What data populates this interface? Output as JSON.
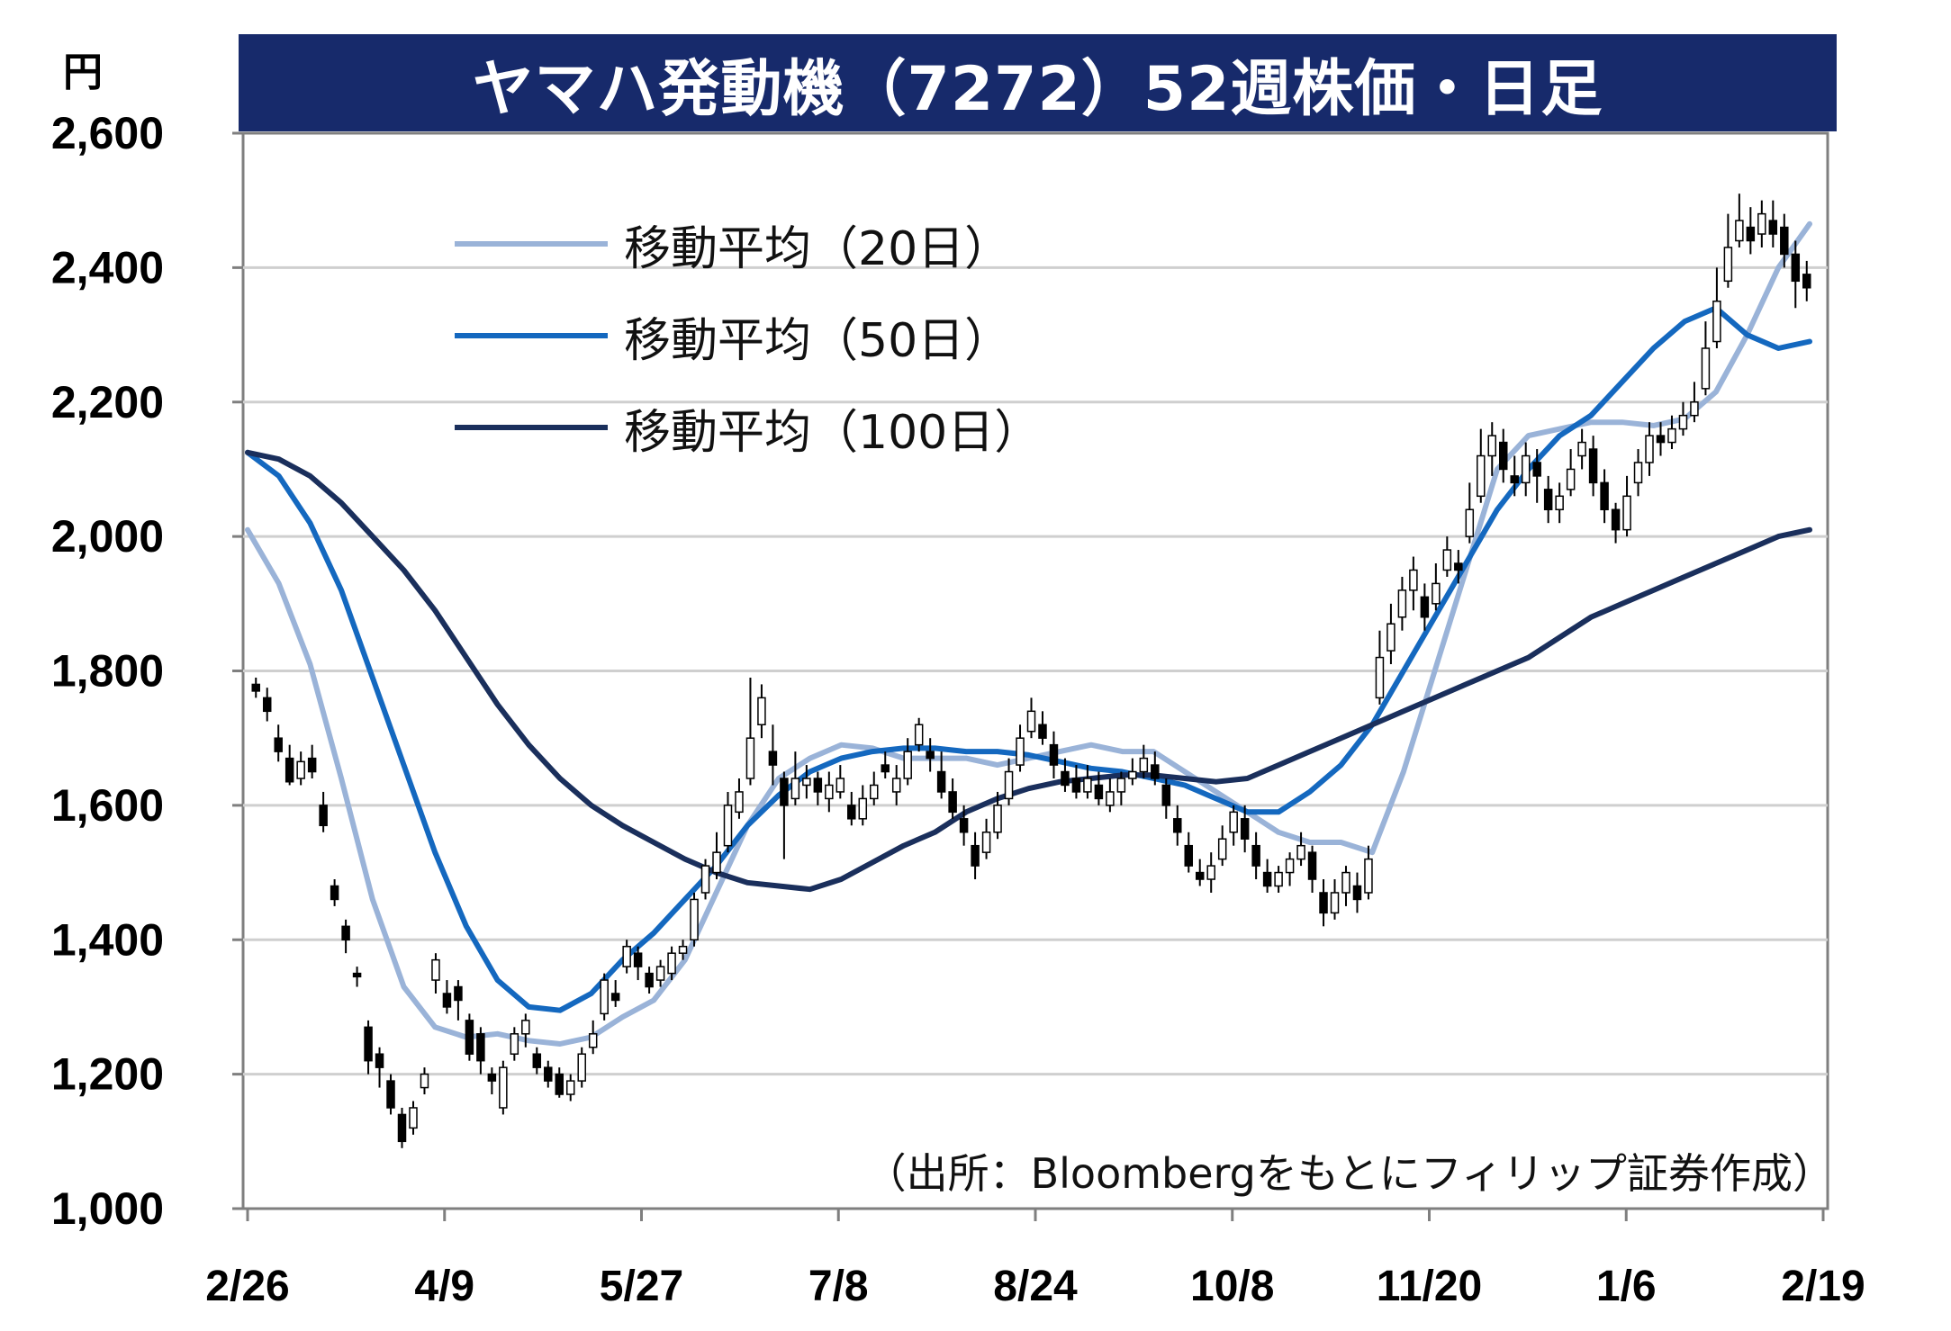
{
  "chart_data": {
    "type": "candlestick",
    "title": "ヤマハ発動機（7272）52週株価・日足",
    "ylabel": "円",
    "ylim": [
      1000,
      2600
    ],
    "y_ticks": [
      "1,000",
      "1,200",
      "1,400",
      "1,600",
      "1,800",
      "2,000",
      "2,200",
      "2,400",
      "2,600"
    ],
    "y_tick_values": [
      1000,
      1200,
      1400,
      1600,
      1800,
      2000,
      2200,
      2400,
      2600
    ],
    "x_ticks": [
      "2/26",
      "4/9",
      "5/27",
      "7/8",
      "8/24",
      "10/8",
      "11/20",
      "1/6",
      "2/19"
    ],
    "grid": true,
    "legend_position": "top-left",
    "source_note": "（出所：Bloombergをもとにフィリップ証券作成）",
    "candles": [
      [
        1780,
        1770,
        1790,
        1760
      ],
      [
        1760,
        1740,
        1775,
        1725
      ],
      [
        1700,
        1680,
        1720,
        1665
      ],
      [
        1670,
        1635,
        1690,
        1630
      ],
      [
        1640,
        1665,
        1680,
        1630
      ],
      [
        1670,
        1650,
        1690,
        1640
      ],
      [
        1600,
        1570,
        1620,
        1560
      ],
      [
        1480,
        1460,
        1490,
        1450
      ],
      [
        1420,
        1400,
        1430,
        1380
      ],
      [
        1350,
        1345,
        1360,
        1330
      ],
      [
        1270,
        1220,
        1280,
        1200
      ],
      [
        1230,
        1210,
        1240,
        1180
      ],
      [
        1190,
        1150,
        1200,
        1140
      ],
      [
        1140,
        1100,
        1150,
        1090
      ],
      [
        1120,
        1150,
        1160,
        1110
      ],
      [
        1180,
        1200,
        1210,
        1170
      ],
      [
        1340,
        1370,
        1380,
        1320
      ],
      [
        1320,
        1300,
        1340,
        1290
      ],
      [
        1330,
        1310,
        1340,
        1280
      ],
      [
        1280,
        1230,
        1290,
        1220
      ],
      [
        1260,
        1220,
        1270,
        1200
      ],
      [
        1200,
        1190,
        1210,
        1170
      ],
      [
        1150,
        1210,
        1220,
        1140
      ],
      [
        1230,
        1260,
        1270,
        1220
      ],
      [
        1260,
        1280,
        1290,
        1240
      ],
      [
        1230,
        1210,
        1240,
        1200
      ],
      [
        1210,
        1190,
        1220,
        1180
      ],
      [
        1200,
        1170,
        1210,
        1165
      ],
      [
        1170,
        1190,
        1200,
        1160
      ],
      [
        1190,
        1230,
        1240,
        1180
      ],
      [
        1240,
        1260,
        1280,
        1230
      ],
      [
        1290,
        1340,
        1350,
        1280
      ],
      [
        1320,
        1310,
        1340,
        1300
      ],
      [
        1360,
        1390,
        1400,
        1350
      ],
      [
        1380,
        1360,
        1390,
        1340
      ],
      [
        1350,
        1330,
        1360,
        1320
      ],
      [
        1340,
        1360,
        1370,
        1330
      ],
      [
        1350,
        1380,
        1390,
        1340
      ],
      [
        1380,
        1390,
        1400,
        1370
      ],
      [
        1400,
        1460,
        1470,
        1390
      ],
      [
        1470,
        1510,
        1520,
        1460
      ],
      [
        1500,
        1530,
        1560,
        1490
      ],
      [
        1540,
        1600,
        1620,
        1530
      ],
      [
        1590,
        1620,
        1640,
        1580
      ],
      [
        1640,
        1700,
        1790,
        1630
      ],
      [
        1720,
        1760,
        1780,
        1700
      ],
      [
        1680,
        1660,
        1720,
        1630
      ],
      [
        1640,
        1600,
        1650,
        1520
      ],
      [
        1610,
        1640,
        1680,
        1600
      ],
      [
        1630,
        1640,
        1660,
        1610
      ],
      [
        1640,
        1620,
        1650,
        1600
      ],
      [
        1610,
        1630,
        1650,
        1590
      ],
      [
        1620,
        1640,
        1660,
        1610
      ],
      [
        1600,
        1580,
        1620,
        1570
      ],
      [
        1580,
        1610,
        1630,
        1570
      ],
      [
        1610,
        1630,
        1650,
        1600
      ],
      [
        1660,
        1650,
        1680,
        1640
      ],
      [
        1620,
        1640,
        1660,
        1600
      ],
      [
        1640,
        1680,
        1700,
        1630
      ],
      [
        1690,
        1720,
        1730,
        1680
      ],
      [
        1680,
        1670,
        1700,
        1650
      ],
      [
        1650,
        1620,
        1680,
        1610
      ],
      [
        1620,
        1590,
        1640,
        1580
      ],
      [
        1580,
        1560,
        1600,
        1540
      ],
      [
        1540,
        1510,
        1560,
        1490
      ],
      [
        1530,
        1560,
        1580,
        1520
      ],
      [
        1560,
        1600,
        1620,
        1550
      ],
      [
        1610,
        1650,
        1670,
        1600
      ],
      [
        1660,
        1700,
        1720,
        1650
      ],
      [
        1710,
        1740,
        1760,
        1700
      ],
      [
        1720,
        1700,
        1740,
        1690
      ],
      [
        1690,
        1660,
        1710,
        1640
      ],
      [
        1650,
        1630,
        1670,
        1620
      ],
      [
        1640,
        1620,
        1660,
        1610
      ],
      [
        1620,
        1640,
        1660,
        1610
      ],
      [
        1630,
        1610,
        1650,
        1600
      ],
      [
        1600,
        1620,
        1640,
        1590
      ],
      [
        1620,
        1640,
        1650,
        1600
      ],
      [
        1640,
        1650,
        1670,
        1630
      ],
      [
        1650,
        1670,
        1690,
        1640
      ],
      [
        1660,
        1640,
        1680,
        1630
      ],
      [
        1630,
        1600,
        1640,
        1580
      ],
      [
        1580,
        1560,
        1600,
        1540
      ],
      [
        1540,
        1510,
        1560,
        1500
      ],
      [
        1500,
        1490,
        1520,
        1480
      ],
      [
        1490,
        1510,
        1530,
        1470
      ],
      [
        1520,
        1550,
        1570,
        1510
      ],
      [
        1560,
        1590,
        1600,
        1540
      ],
      [
        1580,
        1550,
        1600,
        1530
      ],
      [
        1540,
        1510,
        1560,
        1490
      ],
      [
        1500,
        1480,
        1520,
        1470
      ],
      [
        1480,
        1500,
        1510,
        1470
      ],
      [
        1500,
        1520,
        1530,
        1480
      ],
      [
        1520,
        1540,
        1560,
        1510
      ],
      [
        1530,
        1490,
        1540,
        1470
      ],
      [
        1470,
        1440,
        1490,
        1420
      ],
      [
        1440,
        1470,
        1490,
        1430
      ],
      [
        1470,
        1500,
        1510,
        1450
      ],
      [
        1480,
        1460,
        1500,
        1440
      ],
      [
        1470,
        1520,
        1540,
        1460
      ],
      [
        1760,
        1820,
        1860,
        1750
      ],
      [
        1830,
        1870,
        1900,
        1810
      ],
      [
        1880,
        1920,
        1940,
        1860
      ],
      [
        1920,
        1950,
        1970,
        1890
      ],
      [
        1910,
        1880,
        1930,
        1860
      ],
      [
        1900,
        1930,
        1960,
        1890
      ],
      [
        1950,
        1980,
        2000,
        1940
      ],
      [
        1960,
        1950,
        1980,
        1930
      ],
      [
        2000,
        2040,
        2080,
        1990
      ],
      [
        2060,
        2120,
        2160,
        2050
      ],
      [
        2120,
        2150,
        2170,
        2090
      ],
      [
        2140,
        2100,
        2160,
        2080
      ],
      [
        2090,
        2080,
        2120,
        2060
      ],
      [
        2080,
        2120,
        2140,
        2060
      ],
      [
        2110,
        2090,
        2130,
        2050
      ],
      [
        2070,
        2040,
        2090,
        2020
      ],
      [
        2040,
        2060,
        2080,
        2020
      ],
      [
        2070,
        2100,
        2130,
        2060
      ],
      [
        2120,
        2140,
        2160,
        2100
      ],
      [
        2130,
        2080,
        2150,
        2060
      ],
      [
        2080,
        2040,
        2100,
        2020
      ],
      [
        2040,
        2010,
        2050,
        1990
      ],
      [
        2010,
        2060,
        2090,
        2000
      ],
      [
        2080,
        2110,
        2130,
        2060
      ],
      [
        2110,
        2150,
        2170,
        2090
      ],
      [
        2150,
        2140,
        2170,
        2120
      ],
      [
        2140,
        2160,
        2180,
        2130
      ],
      [
        2160,
        2180,
        2200,
        2150
      ],
      [
        2180,
        2200,
        2230,
        2170
      ],
      [
        2220,
        2280,
        2320,
        2210
      ],
      [
        2290,
        2350,
        2400,
        2280
      ],
      [
        2380,
        2430,
        2480,
        2370
      ],
      [
        2440,
        2470,
        2510,
        2430
      ],
      [
        2460,
        2440,
        2490,
        2420
      ],
      [
        2450,
        2480,
        2500,
        2430
      ],
      [
        2470,
        2450,
        2500,
        2430
      ],
      [
        2460,
        2420,
        2480,
        2400
      ],
      [
        2420,
        2380,
        2440,
        2340
      ],
      [
        2390,
        2370,
        2410,
        2350
      ]
    ],
    "series": [
      {
        "name": "移動平均（20日）",
        "values": [
          2010,
          1930,
          1810,
          1640,
          1460,
          1330,
          1270,
          1255,
          1260,
          1250,
          1245,
          1255,
          1285,
          1310,
          1370,
          1470,
          1570,
          1640,
          1670,
          1690,
          1685,
          1670,
          1670,
          1670,
          1660,
          1670,
          1680,
          1690,
          1680,
          1680,
          1650,
          1620,
          1590,
          1560,
          1545,
          1545,
          1530,
          1650,
          1800,
          1950,
          2100,
          2150,
          2160,
          2170,
          2170,
          2165,
          2175,
          2215,
          2300,
          2400,
          2465
        ]
      },
      {
        "name": "移動平均（50日）",
        "values": [
          2125,
          2090,
          2020,
          1920,
          1790,
          1660,
          1530,
          1420,
          1340,
          1300,
          1295,
          1320,
          1370,
          1410,
          1460,
          1510,
          1570,
          1615,
          1650,
          1670,
          1680,
          1685,
          1685,
          1680,
          1680,
          1675,
          1665,
          1655,
          1650,
          1640,
          1630,
          1610,
          1590,
          1590,
          1620,
          1660,
          1720,
          1800,
          1880,
          1960,
          2040,
          2100,
          2150,
          2180,
          2230,
          2280,
          2320,
          2340,
          2300,
          2280,
          2290
        ]
      },
      {
        "name": "移動平均（100日）",
        "values": [
          2125,
          2115,
          2090,
          2050,
          2000,
          1950,
          1890,
          1820,
          1750,
          1690,
          1640,
          1600,
          1570,
          1545,
          1520,
          1500,
          1485,
          1480,
          1475,
          1490,
          1515,
          1540,
          1560,
          1590,
          1610,
          1625,
          1635,
          1640,
          1645,
          1645,
          1640,
          1635,
          1640,
          1660,
          1680,
          1700,
          1720,
          1740,
          1760,
          1780,
          1800,
          1820,
          1850,
          1880,
          1900,
          1920,
          1940,
          1960,
          1980,
          2000,
          2010
        ]
      }
    ],
    "colors": {
      "title_bar": "#172a6b",
      "ma20": "#9ab3d8",
      "ma50": "#1468bf",
      "ma100": "#1a2f5c",
      "grid": "#cfcfcf",
      "axis": "#7f7f7f",
      "candle": "#000000"
    }
  }
}
